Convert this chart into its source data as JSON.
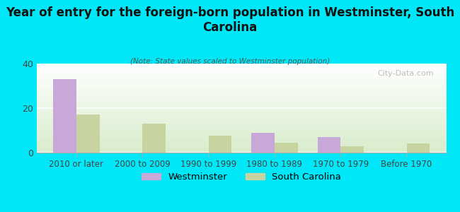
{
  "title": "Year of entry for the foreign-born population in Westminster, South\nCarolina",
  "subtitle": "(Note: State values scaled to Westminster population)",
  "categories": [
    "2010 or later",
    "2000 to 2009",
    "1990 to 1999",
    "1980 to 1989",
    "1970 to 1979",
    "Before 1970"
  ],
  "westminster_values": [
    33,
    0,
    0,
    9,
    7,
    0
  ],
  "sc_values": [
    17,
    13,
    7.5,
    4.5,
    3,
    4
  ],
  "westminster_color": "#c8a8d8",
  "sc_color": "#c8d4a0",
  "background_color": "#00e8f8",
  "plot_bg_color": "#eef6e8",
  "ylim": [
    0,
    40
  ],
  "yticks": [
    0,
    20,
    40
  ],
  "bar_width": 0.35,
  "watermark": "City-Data.com",
  "legend_westminster": "Westminster",
  "legend_sc": "South Carolina"
}
